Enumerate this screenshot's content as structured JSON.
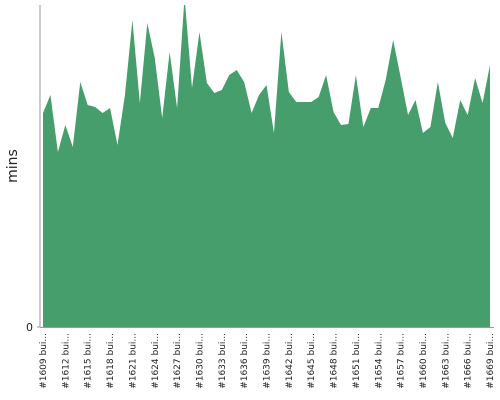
{
  "chart_data": {
    "type": "area",
    "y_label": "mins",
    "color": "#459e6c",
    "categories": [
      "#1609 bui...",
      null,
      null,
      "#1612 bui...",
      null,
      null,
      "#1615 bui...",
      null,
      null,
      "#1618 bui...",
      null,
      null,
      "#1621 bui...",
      null,
      null,
      "#1624 bui...",
      null,
      null,
      "#1627 bui...",
      null,
      null,
      "#1630 bui...",
      null,
      null,
      "#1633 bui...",
      null,
      null,
      "#1636 bui...",
      null,
      null,
      "#1639 bui...",
      null,
      null,
      "#1642 bui...",
      null,
      null,
      "#1645 bui...",
      null,
      null,
      "#1648 bui...",
      null,
      null,
      "#1651 bui...",
      null,
      null,
      "#1654 bui...",
      null,
      null,
      "#1657 bui...",
      null,
      null,
      "#1660 bui...",
      null,
      null,
      "#1663 bui...",
      null,
      null,
      "#1666 bui...",
      null,
      null,
      "#1669 bui..."
    ],
    "values": [
      21.4,
      23.2,
      17.5,
      20.2,
      18,
      24.5,
      22.2,
      22,
      21.4,
      21.9,
      18.2,
      23.2,
      30.7,
      22.4,
      30.4,
      26.9,
      20.9,
      27.5,
      21.9,
      33,
      23.9,
      29.5,
      24.4,
      23.4,
      23.7,
      25.2,
      25.7,
      24.5,
      21.4,
      23.2,
      24.2,
      19.4,
      29.5,
      23.5,
      22.5,
      22.5,
      22.5,
      23,
      25.2,
      21.5,
      20.2,
      20.3,
      25.2,
      20,
      21.9,
      21.9,
      24.7,
      28.7,
      25,
      21.2,
      22.7,
      19.4,
      20,
      24.5,
      20.4,
      18.9,
      22.7,
      21.2,
      24.9,
      22.4,
      26.2
    ],
    "ylim": [
      0,
      32.2
    ],
    "yticks": [
      0
    ]
  }
}
